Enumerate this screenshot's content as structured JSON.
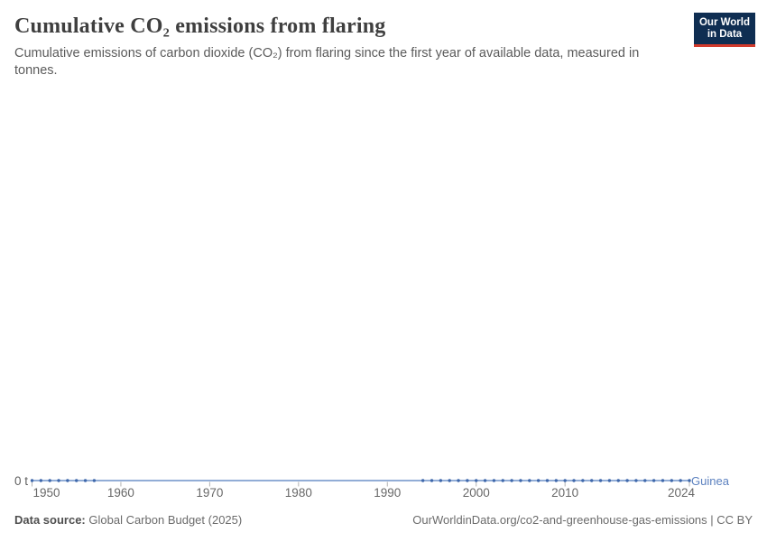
{
  "header": {
    "title": "Cumulative CO₂ emissions from flaring",
    "subtitle": "Cumulative emissions of carbon dioxide (CO₂) from flaring since the first year of available data, measured in tonnes."
  },
  "logo": {
    "line1": "Our World",
    "line2": "in Data",
    "bg_color": "#0f2e52",
    "accent_color": "#d23a2c"
  },
  "chart": {
    "y_zero_label": "0 t",
    "colors": {
      "line": "#6e92c8",
      "marker": "#3f68ab",
      "entity_label": "#5b80bf",
      "axis_tick": "#b3b3b3"
    }
  },
  "chart_data": {
    "type": "line",
    "title": "Cumulative CO₂ emissions from flaring",
    "xlabel": "Year",
    "ylabel": "tonnes",
    "grid": false,
    "x_range": [
      1950,
      2024
    ],
    "x_ticks": [
      1950,
      1960,
      1970,
      1980,
      1990,
      2000,
      2010,
      2024
    ],
    "y_tick_labels": [
      "0 t"
    ],
    "ylim": [
      0,
      0
    ],
    "series": [
      {
        "name": "Guinea",
        "x_start": 1950,
        "x_end": 2024,
        "constant_value": 0,
        "marker_year_ranges": [
          [
            1950,
            1957
          ],
          [
            1994,
            2024
          ]
        ],
        "note": "Value is 0 t for every year from 1950 to 2024"
      }
    ]
  },
  "footer": {
    "source_label": "Data source:",
    "source_value": "Global Carbon Budget (2025)",
    "credit": "OurWorldinData.org/co2-and-greenhouse-gas-emissions | CC BY"
  }
}
